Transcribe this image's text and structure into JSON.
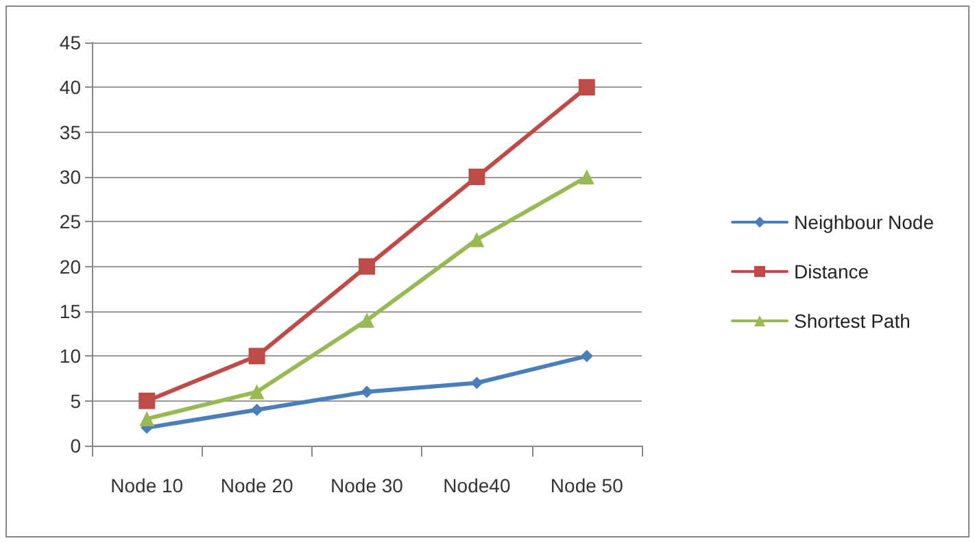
{
  "chart_data": {
    "type": "line",
    "categories": [
      "Node 10",
      "Node 20",
      "Node 30",
      "Node40",
      "Node 50"
    ],
    "series": [
      {
        "name": "Neighbour Node",
        "color": "#4a7ebb",
        "marker": "diamond",
        "values": [
          2,
          4,
          6,
          7,
          10
        ]
      },
      {
        "name": "Distance",
        "color": "#be4b48",
        "marker": "square",
        "values": [
          5,
          10,
          20,
          30,
          40
        ]
      },
      {
        "name": "Shortest Path",
        "color": "#98b954",
        "marker": "triangle",
        "values": [
          3,
          6,
          14,
          23,
          30
        ]
      }
    ],
    "ylim": [
      0,
      45
    ],
    "yticks": [
      0,
      5,
      10,
      15,
      20,
      25,
      30,
      35,
      40,
      45
    ],
    "grid": "y",
    "legend": "right",
    "line_style": "solid"
  }
}
